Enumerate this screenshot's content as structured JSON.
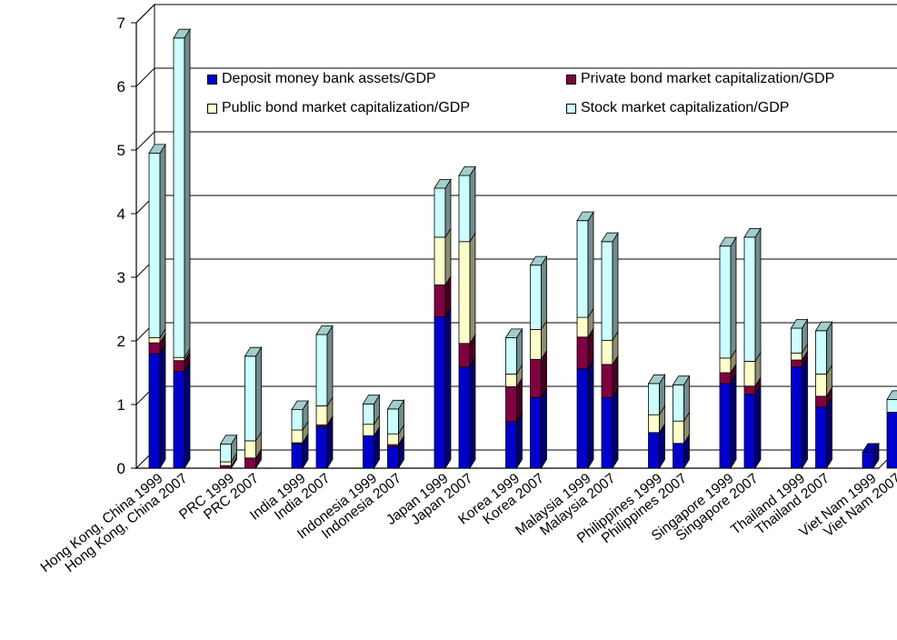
{
  "chart_data": {
    "type": "bar",
    "stacked": true,
    "style": "3d",
    "title": "",
    "xlabel": "",
    "ylabel": "",
    "ylim": [
      0,
      7
    ],
    "yticks": [
      "0",
      "1",
      "2",
      "3",
      "4",
      "5",
      "6",
      "7"
    ],
    "grid": true,
    "legend_position": "top-right",
    "categories": [
      "Hong Kong, China 1999",
      "Hong Kong, China 2007",
      "PRC 1999",
      "PRC 2007",
      "India 1999",
      "India 2007",
      "Indonesia 1999",
      "Indonesia 2007",
      "Japan 1999",
      "Japan 2007",
      "Korea 1999",
      "Korea 2007",
      "Malaysia 1999",
      "Malaysia 2007",
      "Philippines 1999",
      "Philippines 2007",
      "Singapore 1999",
      "Singapore 2007",
      "Thailand 1999",
      "Thailand 2007",
      "Viet Nam 1999",
      "Viet Nam 2007"
    ],
    "series": [
      {
        "name": "Deposit money bank assets/GDP",
        "color": "#0000cc",
        "values": [
          1.8,
          1.52,
          0.0,
          0.0,
          0.38,
          0.65,
          0.51,
          0.34,
          2.38,
          1.59,
          0.73,
          1.11,
          1.56,
          1.11,
          0.56,
          0.39,
          1.33,
          1.16,
          1.59,
          0.96,
          0.25,
          0.88
        ]
      },
      {
        "name": "Private bond market capitalization/GDP",
        "color": "#800040",
        "values": [
          0.17,
          0.17,
          0.04,
          0.16,
          0.02,
          0.03,
          0.0,
          0.03,
          0.5,
          0.37,
          0.55,
          0.6,
          0.5,
          0.52,
          0.0,
          0.0,
          0.17,
          0.13,
          0.11,
          0.17,
          0.0,
          0.0
        ]
      },
      {
        "name": "Public bond market capitalization/GDP",
        "color": "#ffffcc",
        "values": [
          0.08,
          0.05,
          0.06,
          0.27,
          0.2,
          0.3,
          0.18,
          0.17,
          0.75,
          1.6,
          0.2,
          0.47,
          0.31,
          0.38,
          0.28,
          0.35,
          0.23,
          0.39,
          0.11,
          0.35,
          0.0,
          0.0
        ]
      },
      {
        "name": "Stock market capitalization/GDP",
        "color": "#ccffff",
        "values": [
          2.9,
          5.02,
          0.28,
          1.33,
          0.32,
          1.12,
          0.32,
          0.39,
          0.77,
          1.04,
          0.57,
          1.01,
          1.52,
          1.55,
          0.49,
          0.57,
          1.76,
          1.95,
          0.39,
          0.68,
          0.0,
          0.2
        ]
      }
    ]
  }
}
